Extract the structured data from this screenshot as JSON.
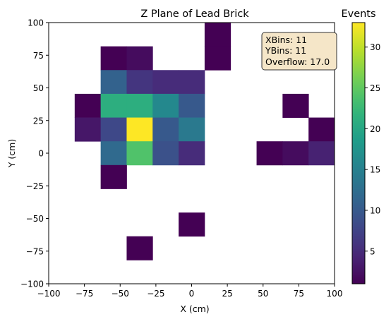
{
  "chart_data": {
    "type": "heatmap",
    "title": "Z Plane of Lead Brick",
    "xlabel": "X (cm)",
    "ylabel": "Y (cm)",
    "xlim": [
      -100,
      100
    ],
    "ylim": [
      -100,
      100
    ],
    "xbins": 11,
    "ybins": 11,
    "x_ticks": [
      -100,
      -75,
      -50,
      -25,
      0,
      25,
      50,
      75,
      100
    ],
    "y_ticks": [
      -100,
      -75,
      -50,
      -25,
      0,
      25,
      50,
      75,
      100
    ],
    "x_tick_labels": [
      "−100",
      "−75",
      "−50",
      "−25",
      "0",
      "25",
      "50",
      "75",
      "100"
    ],
    "y_tick_labels": [
      "−100",
      "−75",
      "−50",
      "−25",
      "0",
      "25",
      "50",
      "75",
      "100"
    ],
    "grid": false,
    "colormap": "viridis",
    "colorbar": {
      "label": "Events",
      "min": 1,
      "max": 33,
      "ticks": [
        5,
        10,
        15,
        20,
        25,
        30
      ],
      "tick_labels": [
        "5",
        "10",
        "15",
        "20",
        "25",
        "30"
      ]
    },
    "annotation": {
      "lines": [
        "XBins: 11",
        "YBins: 11",
        "Overflow: 17.0"
      ],
      "placement": "top-right",
      "background": "#f5e6c8"
    },
    "cells": [
      {
        "col": 6,
        "row": 0,
        "value": 1
      },
      {
        "col": 2,
        "row": 1,
        "value": 1
      },
      {
        "col": 6,
        "row": 1,
        "value": 1
      },
      {
        "col": 3,
        "row": 1,
        "value": 2
      },
      {
        "col": 2,
        "row": 2,
        "value": 11
      },
      {
        "col": 3,
        "row": 2,
        "value": 6
      },
      {
        "col": 4,
        "row": 2,
        "value": 5
      },
      {
        "col": 5,
        "row": 2,
        "value": 5
      },
      {
        "col": 1,
        "row": 3,
        "value": 1
      },
      {
        "col": 2,
        "row": 3,
        "value": 21
      },
      {
        "col": 3,
        "row": 3,
        "value": 21
      },
      {
        "col": 4,
        "row": 3,
        "value": 16
      },
      {
        "col": 5,
        "row": 3,
        "value": 10
      },
      {
        "col": 9,
        "row": 3,
        "value": 1
      },
      {
        "col": 1,
        "row": 4,
        "value": 3
      },
      {
        "col": 2,
        "row": 4,
        "value": 8
      },
      {
        "col": 3,
        "row": 4,
        "value": 33
      },
      {
        "col": 4,
        "row": 4,
        "value": 10
      },
      {
        "col": 5,
        "row": 4,
        "value": 14
      },
      {
        "col": 10,
        "row": 4,
        "value": 1
      },
      {
        "col": 2,
        "row": 5,
        "value": 12
      },
      {
        "col": 3,
        "row": 5,
        "value": 24
      },
      {
        "col": 4,
        "row": 5,
        "value": 9
      },
      {
        "col": 5,
        "row": 5,
        "value": 5
      },
      {
        "col": 8,
        "row": 5,
        "value": 1
      },
      {
        "col": 9,
        "row": 5,
        "value": 2
      },
      {
        "col": 10,
        "row": 5,
        "value": 4
      },
      {
        "col": 2,
        "row": 6,
        "value": 1
      },
      {
        "col": 5,
        "row": 8,
        "value": 1
      },
      {
        "col": 3,
        "row": 9,
        "value": 1
      }
    ]
  },
  "colors": {
    "axis": "#000000",
    "background": "#ffffff",
    "annotation_border": "#333333"
  }
}
